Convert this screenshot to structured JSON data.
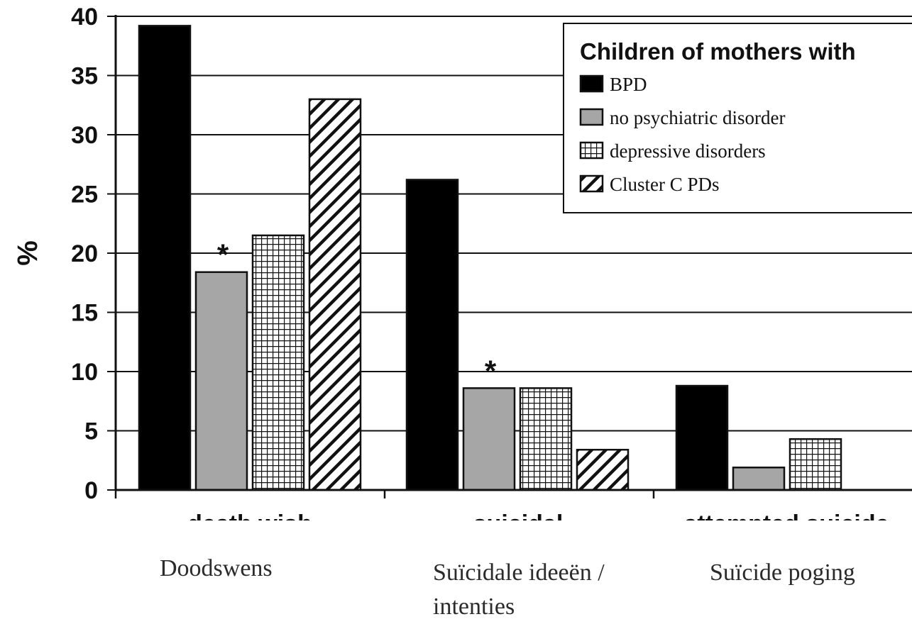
{
  "chart_data": {
    "type": "bar",
    "categories": [
      "death wish",
      "suicidal",
      "attempted suicide"
    ],
    "series": [
      {
        "name": "BPD",
        "values": [
          39.2,
          26.2,
          8.8
        ],
        "color": "#000000",
        "pattern": "solid"
      },
      {
        "name": "no psychiatric disorder",
        "values": [
          18.4,
          8.6,
          1.9
        ],
        "color": "#a6a6a6",
        "pattern": "solid"
      },
      {
        "name": "depressive disorders",
        "values": [
          21.5,
          8.6,
          4.3
        ],
        "color": "#ffffff",
        "pattern": "grid"
      },
      {
        "name": "Cluster C PDs",
        "values": [
          33.0,
          3.4,
          null
        ],
        "color": "#ffffff",
        "pattern": "diagonal"
      }
    ],
    "ylabel": "%",
    "yticks": [
      0,
      5,
      10,
      15,
      20,
      25,
      30,
      35,
      40
    ],
    "ylim": [
      0,
      40
    ],
    "grid": true,
    "legend": {
      "title": "Children of mothers with",
      "position": "top-right"
    },
    "annotations": [
      {
        "text": "*",
        "category": "death wish",
        "series": "no psychiatric disorder"
      },
      {
        "text": "*",
        "category": "suicidal",
        "series": "no psychiatric disorder"
      }
    ]
  },
  "captions": [
    "Doodswens",
    "Suïcidale ideeën / intenties",
    "Suïcide poging"
  ]
}
